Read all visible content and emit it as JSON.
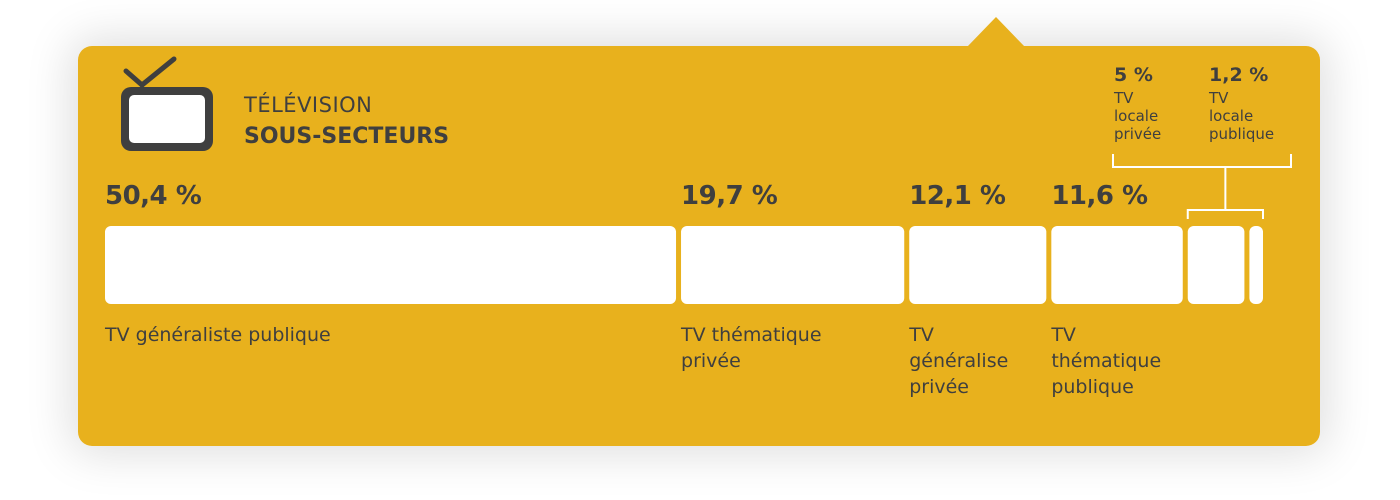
{
  "header": {
    "category": "TÉLÉVISION",
    "subtitle": "SOUS-SECTEURS",
    "icon": "tv-icon"
  },
  "colors": {
    "panel": "#e8b11d",
    "bar": "#ffffff",
    "text": "#3f3f3f"
  },
  "chart_data": {
    "type": "bar",
    "orientation": "horizontal-stacked",
    "categories": [
      "TV généraliste publique",
      "TV thématique privée",
      "TV généralise privée",
      "TV thématique publique",
      "TV locale privée",
      "TV locale publique"
    ],
    "values": [
      50.4,
      19.7,
      12.1,
      11.6,
      5,
      1.2
    ],
    "value_labels": [
      "50,4 %",
      "19,7 %",
      "12,1 %",
      "11,6 %",
      "5 %",
      "1,2 %"
    ],
    "label_lines": [
      [
        "TV généraliste publique"
      ],
      [
        "TV thématique",
        "privée"
      ],
      [
        "TV",
        "généralise",
        "privée"
      ],
      [
        "TV",
        "thématique",
        "publique"
      ],
      [
        "TV",
        "locale",
        "privée"
      ],
      [
        "TV",
        "locale",
        "publique"
      ]
    ],
    "unit": "%"
  }
}
